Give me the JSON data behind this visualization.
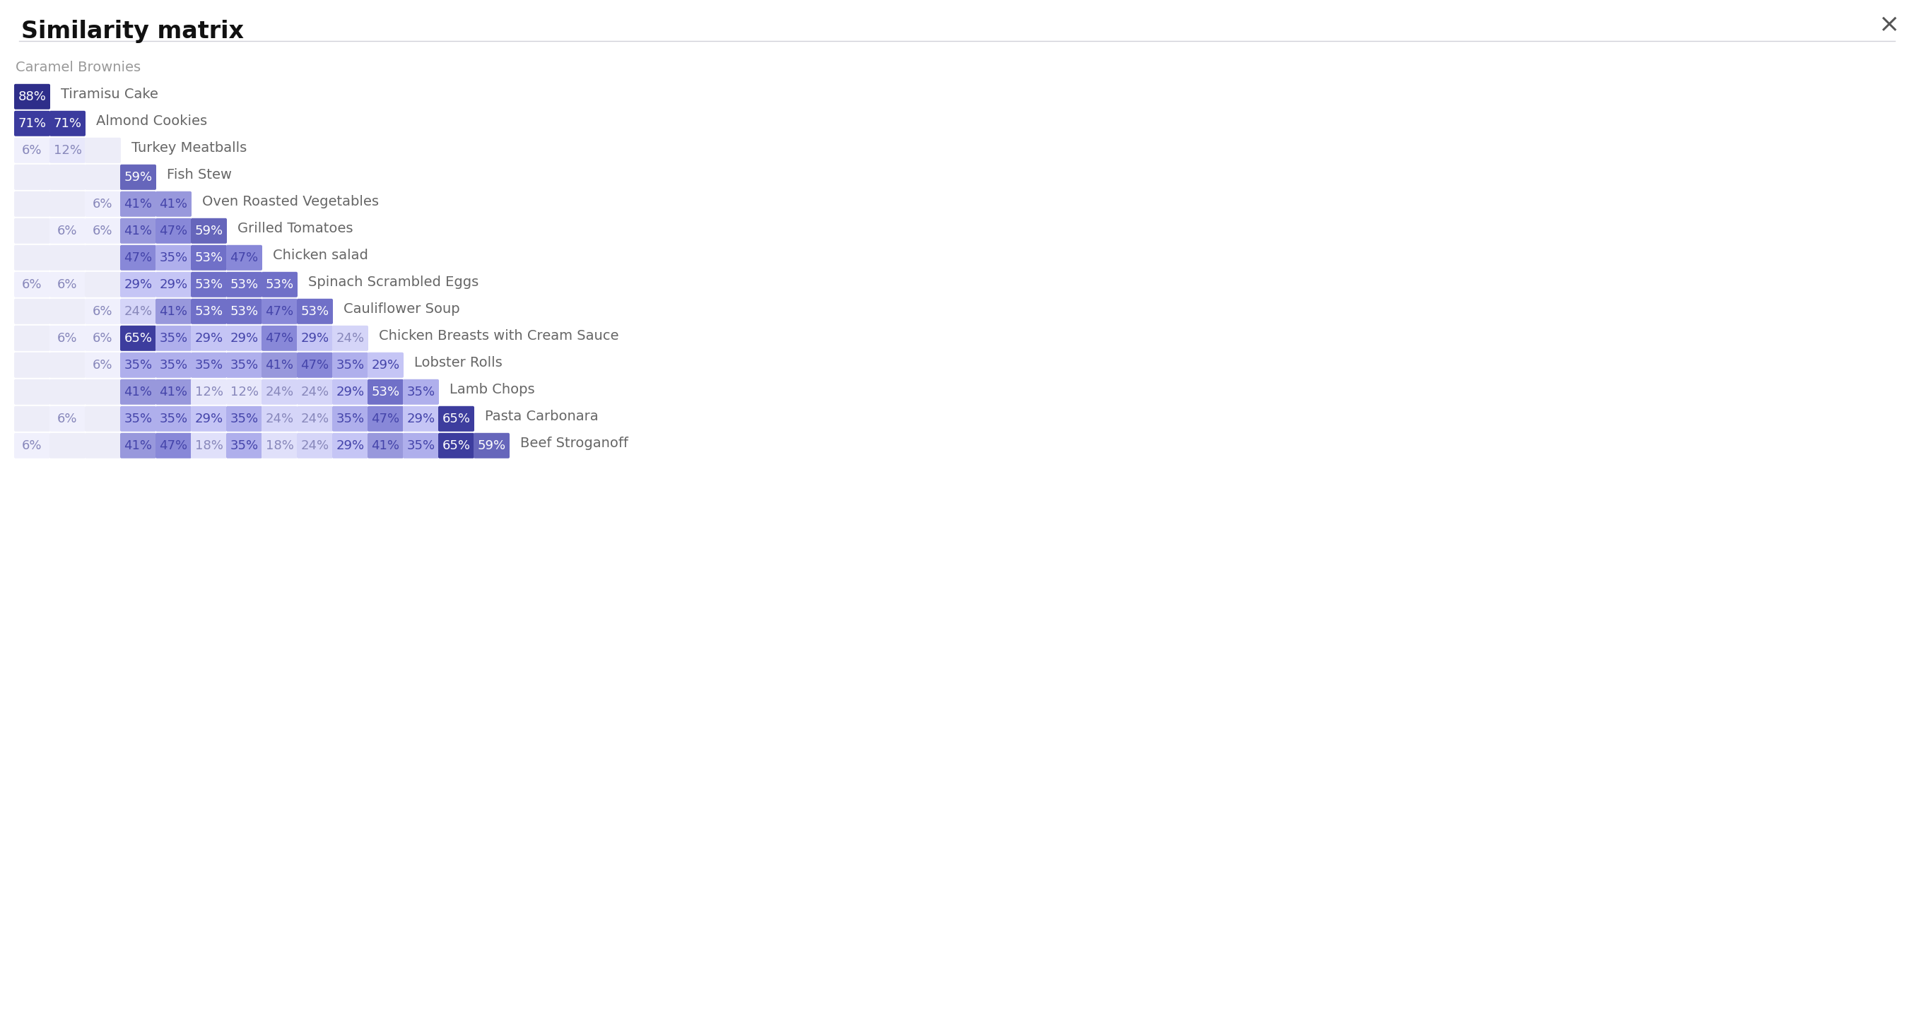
{
  "title": "Similarity matrix",
  "items": [
    "Caramel Brownies",
    "Tiramisu Cake",
    "Almond Cookies",
    "Turkey Meatballs",
    "Fish Stew",
    "Oven Roasted Vegetables",
    "Grilled Tomatoes",
    "Chicken salad",
    "Spinach Scrambled Eggs",
    "Cauliflower Soup",
    "Chicken Breasts with Cream Sauce",
    "Lobster Rolls",
    "Lamb Chops",
    "Pasta Carbonara",
    "Beef Stroganoff"
  ],
  "matrix": [
    [
      null,
      null,
      null,
      null,
      null,
      null,
      null,
      null,
      null,
      null,
      null,
      null,
      null,
      null,
      null
    ],
    [
      88,
      null,
      null,
      null,
      null,
      null,
      null,
      null,
      null,
      null,
      null,
      null,
      null,
      null,
      null
    ],
    [
      71,
      71,
      null,
      null,
      null,
      null,
      null,
      null,
      null,
      null,
      null,
      null,
      null,
      null,
      null
    ],
    [
      6,
      12,
      null,
      null,
      null,
      null,
      null,
      null,
      null,
      null,
      null,
      null,
      null,
      null,
      null
    ],
    [
      null,
      null,
      null,
      59,
      null,
      null,
      null,
      null,
      null,
      null,
      null,
      null,
      null,
      null,
      null
    ],
    [
      null,
      null,
      6,
      41,
      41,
      null,
      null,
      null,
      null,
      null,
      null,
      null,
      null,
      null,
      null
    ],
    [
      null,
      6,
      6,
      41,
      47,
      59,
      null,
      null,
      null,
      null,
      null,
      null,
      null,
      null,
      null
    ],
    [
      null,
      null,
      null,
      47,
      35,
      53,
      47,
      null,
      null,
      null,
      null,
      null,
      null,
      null,
      null
    ],
    [
      6,
      6,
      null,
      29,
      29,
      53,
      53,
      53,
      null,
      null,
      null,
      null,
      null,
      null,
      null
    ],
    [
      null,
      null,
      6,
      24,
      41,
      53,
      53,
      47,
      53,
      null,
      null,
      null,
      null,
      null,
      null
    ],
    [
      null,
      6,
      6,
      65,
      35,
      29,
      29,
      47,
      29,
      24,
      null,
      null,
      null,
      null,
      null
    ],
    [
      null,
      null,
      6,
      35,
      35,
      35,
      35,
      41,
      47,
      35,
      29,
      null,
      null,
      null,
      null
    ],
    [
      null,
      null,
      null,
      41,
      41,
      12,
      12,
      24,
      24,
      29,
      53,
      35,
      null,
      null,
      null
    ],
    [
      null,
      6,
      null,
      35,
      35,
      29,
      35,
      24,
      24,
      35,
      47,
      29,
      65,
      null,
      null
    ],
    [
      6,
      null,
      null,
      41,
      47,
      18,
      35,
      18,
      24,
      29,
      41,
      35,
      65,
      59,
      null
    ]
  ],
  "bg_color": "#ffffff",
  "title_fontsize": 24,
  "item_fontsize": 14,
  "cell_fontsize": 13,
  "separator_color": "#d0d0d8",
  "cell_empty_color": "#ededf8",
  "cell_placeholder_color": "#f0f0fa"
}
